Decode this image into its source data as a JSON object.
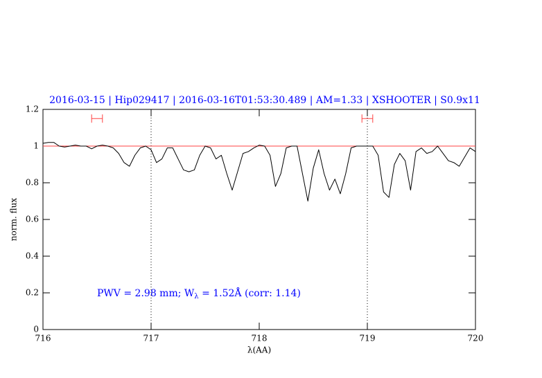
{
  "chart_data": {
    "type": "line",
    "title": "2016-03-15 | Hip029417 | 2016-03-16T01:53:30.489 | AM=1.33 | XSHOOTER | S0.9x11",
    "xlabel": "λ(AA)",
    "ylabel": "norm. flux",
    "annotation": {
      "parts": [
        "PWV = 2.98 mm; W",
        "λ",
        " = 1.52Å (corr: 1.14)"
      ]
    },
    "xlim": [
      716,
      720
    ],
    "xticks": [
      716,
      717,
      718,
      719,
      720
    ],
    "ylim": [
      0,
      1.2
    ],
    "yticks": [
      0,
      0.2,
      0.4,
      0.6,
      0.8,
      1,
      1.2
    ],
    "reference_line": {
      "y": 1,
      "color": "#ff4040"
    },
    "vertical_lines": [
      717,
      719
    ],
    "windows": {
      "color": "#ff4040",
      "items": [
        {
          "x": [
            716.45,
            716.55
          ],
          "y": 1.15
        },
        {
          "x": [
            718.95,
            719.05
          ],
          "y": 1.15
        }
      ]
    },
    "series": [
      {
        "color": "#000000",
        "x": [
          716.0,
          716.05,
          716.1,
          716.15,
          716.2,
          716.25,
          716.3,
          716.35,
          716.4,
          716.45,
          716.5,
          716.55,
          716.6,
          716.65,
          716.7,
          716.75,
          716.8,
          716.85,
          716.9,
          716.95,
          717.0,
          717.05,
          717.1,
          717.15,
          717.2,
          717.25,
          717.3,
          717.35,
          717.4,
          717.45,
          717.5,
          717.55,
          717.6,
          717.65,
          717.7,
          717.75,
          717.8,
          717.85,
          717.9,
          717.95,
          718.0,
          718.05,
          718.1,
          718.15,
          718.2,
          718.25,
          718.3,
          718.35,
          718.4,
          718.45,
          718.5,
          718.55,
          718.6,
          718.65,
          718.7,
          718.75,
          718.8,
          718.85,
          718.9,
          718.95,
          719.0,
          719.05,
          719.1,
          719.15,
          719.2,
          719.25,
          719.3,
          719.35,
          719.4,
          719.45,
          719.5,
          719.55,
          719.6,
          719.65,
          719.7,
          719.75,
          719.8,
          719.85,
          719.9,
          719.95,
          720.0
        ],
        "values": [
          1.015,
          1.02,
          1.02,
          1.0,
          0.995,
          1.0,
          1.005,
          1.0,
          1.0,
          0.985,
          1.0,
          1.005,
          1.0,
          0.99,
          0.96,
          0.91,
          0.89,
          0.95,
          0.99,
          1.0,
          0.98,
          0.91,
          0.93,
          0.99,
          0.99,
          0.93,
          0.87,
          0.86,
          0.87,
          0.95,
          1.0,
          0.99,
          0.93,
          0.95,
          0.85,
          0.76,
          0.86,
          0.96,
          0.97,
          0.99,
          1.005,
          1.0,
          0.95,
          0.78,
          0.85,
          0.99,
          1.0,
          1.0,
          0.85,
          0.7,
          0.88,
          0.98,
          0.85,
          0.76,
          0.82,
          0.74,
          0.85,
          0.99,
          1.0,
          1.0,
          1.0,
          1.0,
          0.95,
          0.75,
          0.72,
          0.9,
          0.96,
          0.92,
          0.76,
          0.97,
          0.99,
          0.96,
          0.97,
          1.0,
          0.96,
          0.92,
          0.91,
          0.89,
          0.94,
          0.99,
          0.97
        ]
      }
    ]
  }
}
